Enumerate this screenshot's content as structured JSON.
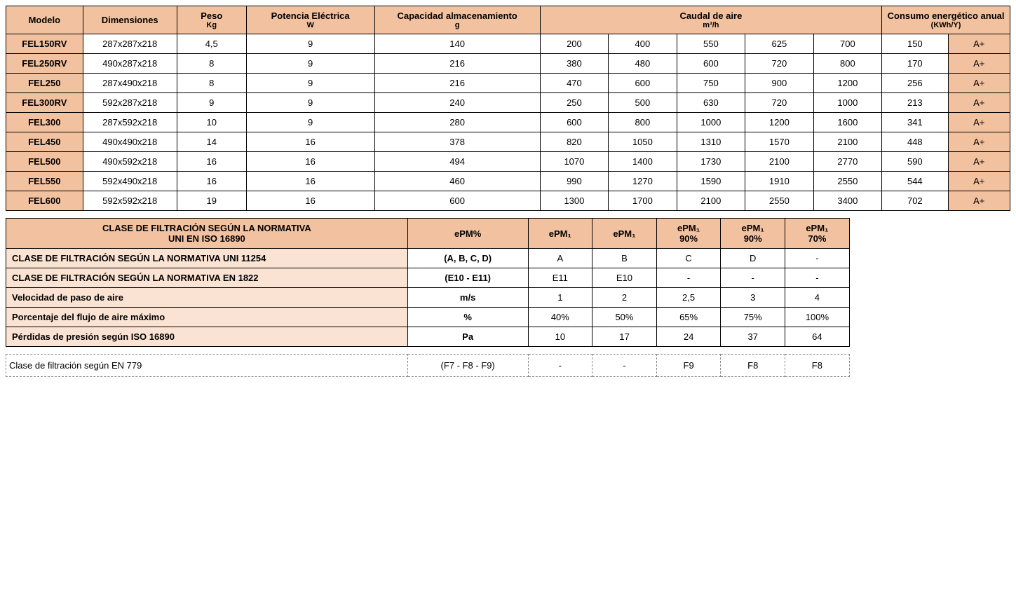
{
  "colors": {
    "header_bg": "#f2c2a0",
    "filter_label_bg": "#fbe3d3",
    "border": "#000000",
    "dashed_border": "#888888",
    "text": "#000000",
    "bg": "#ffffff"
  },
  "spec_table": {
    "header": {
      "modelo": "Modelo",
      "dimensiones": "Dimensiones",
      "peso_t": "Peso",
      "peso_u": "Kg",
      "potencia_t": "Potencia Eléctrica",
      "potencia_u": "W",
      "capacidad_t": "Capacidad almacenamiento",
      "capacidad_u": "g",
      "caudal_t": "Caudal de aire",
      "caudal_u": "m³/h",
      "consumo_t": "Consumo energético anual",
      "consumo_u": "(KWh/Y)"
    },
    "rows": [
      {
        "model": "FEL150RV",
        "dim": "287x287x218",
        "peso": "4,5",
        "pot": "9",
        "cap": "140",
        "q": [
          "200",
          "400",
          "550",
          "625",
          "700"
        ],
        "kwh": "150",
        "rating": "A+"
      },
      {
        "model": "FEL250RV",
        "dim": "490x287x218",
        "peso": "8",
        "pot": "9",
        "cap": "216",
        "q": [
          "380",
          "480",
          "600",
          "720",
          "800"
        ],
        "kwh": "170",
        "rating": "A+"
      },
      {
        "model": "FEL250",
        "dim": "287x490x218",
        "peso": "8",
        "pot": "9",
        "cap": "216",
        "q": [
          "470",
          "600",
          "750",
          "900",
          "1200"
        ],
        "kwh": "256",
        "rating": "A+"
      },
      {
        "model": "FEL300RV",
        "dim": "592x287x218",
        "peso": "9",
        "pot": "9",
        "cap": "240",
        "q": [
          "250",
          "500",
          "630",
          "720",
          "1000"
        ],
        "kwh": "213",
        "rating": "A+"
      },
      {
        "model": "FEL300",
        "dim": "287x592x218",
        "peso": "10",
        "pot": "9",
        "cap": "280",
        "q": [
          "600",
          "800",
          "1000",
          "1200",
          "1600"
        ],
        "kwh": "341",
        "rating": "A+"
      },
      {
        "model": "FEL450",
        "dim": "490x490x218",
        "peso": "14",
        "pot": "16",
        "cap": "378",
        "q": [
          "820",
          "1050",
          "1310",
          "1570",
          "2100"
        ],
        "kwh": "448",
        "rating": "A+"
      },
      {
        "model": "FEL500",
        "dim": "490x592x218",
        "peso": "16",
        "pot": "16",
        "cap": "494",
        "q": [
          "1070",
          "1400",
          "1730",
          "2100",
          "2770"
        ],
        "kwh": "590",
        "rating": "A+"
      },
      {
        "model": "FEL550",
        "dim": "592x490x218",
        "peso": "16",
        "pot": "16",
        "cap": "460",
        "q": [
          "990",
          "1270",
          "1590",
          "1910",
          "2550"
        ],
        "kwh": "544",
        "rating": "A+"
      },
      {
        "model": "FEL600",
        "dim": "592x592x218",
        "peso": "19",
        "pot": "16",
        "cap": "600",
        "q": [
          "1300",
          "1700",
          "2100",
          "2550",
          "3400"
        ],
        "kwh": "702",
        "rating": "A+"
      }
    ]
  },
  "filter_table": {
    "header": {
      "title_l1": "CLASE DE FILTRACIÓN SEGÚN LA NORMATIVA",
      "title_l2": "UNI EN ISO 16890",
      "epm_pct": "ePM%",
      "c1": "ePM₁",
      "c2": "ePM₁",
      "c3_t": "ePM₁",
      "c3_b": "90%",
      "c4_t": "ePM₁",
      "c4_b": "90%",
      "c5_t": "ePM₁",
      "c5_b": "70%"
    },
    "rows": [
      {
        "label": "CLASE DE FILTRACIÓN SEGÚN LA NORMATIVA UNI 11254",
        "unit": "(A, B, C, D)",
        "v": [
          "A",
          "B",
          "C",
          "D",
          "-"
        ]
      },
      {
        "label": "CLASE DE FILTRACIÓN SEGÚN LA NORMATIVA EN 1822",
        "unit": "(E10 - E11)",
        "v": [
          "E11",
          "E10",
          "-",
          "-",
          "-"
        ]
      },
      {
        "label": "Velocidad de paso de aire",
        "unit": "m/s",
        "v": [
          "1",
          "2",
          "2,5",
          "3",
          "4"
        ]
      },
      {
        "label": "Porcentaje del flujo de aire máximo",
        "unit": "%",
        "v": [
          "40%",
          "50%",
          "65%",
          "75%",
          "100%"
        ]
      },
      {
        "label": "Pérdidas de presión según ISO 16890",
        "unit": "Pa",
        "v": [
          "10",
          "17",
          "24",
          "37",
          "64"
        ]
      }
    ]
  },
  "en779": {
    "label": "Clase de filtración según  EN 779",
    "unit": "(F7 - F8 - F9)",
    "v": [
      "-",
      "-",
      "F9",
      "F8",
      "F8"
    ]
  }
}
